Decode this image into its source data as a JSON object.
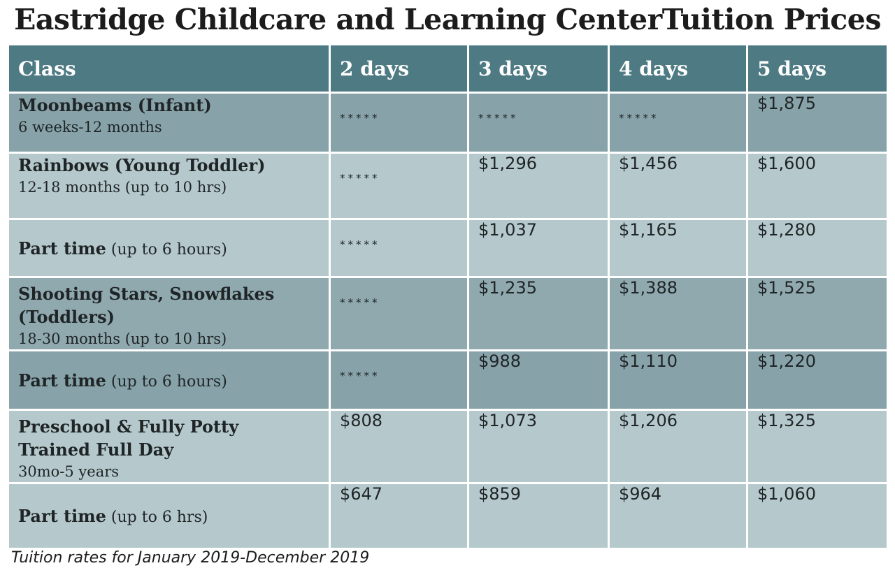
{
  "title": "Eastridge Childcare and Learning CenterTuition Prices",
  "columns": [
    "Class",
    "2 days",
    "3 days",
    "4 days",
    "5 days"
  ],
  "rows": [
    {
      "name": "Moonbeams (Infant)",
      "note": "",
      "sub": "6 weeks-12 months",
      "prices": [
        "*****",
        "*****",
        "*****",
        "$1,875"
      ]
    },
    {
      "name": "Rainbows (Young Toddler)",
      "note": "",
      "sub": "12-18 months (up to 10 hrs)",
      "prices": [
        "*****",
        "$1,296",
        "$1,456",
        "$1,600"
      ]
    },
    {
      "name": "Part time",
      "note": "(up to 6 hours)",
      "sub": "",
      "prices": [
        "*****",
        "$1,037",
        "$1,165",
        "$1,280"
      ]
    },
    {
      "name": "Shooting Stars, Snowflakes (Toddlers)",
      "note": "",
      "sub": "18-30 months (up to 10 hrs)",
      "prices": [
        "*****",
        "$1,235",
        "$1,388",
        "$1,525"
      ]
    },
    {
      "name": "Part time",
      "note": "(up to 6 hours)",
      "sub": "",
      "prices": [
        "*****",
        "$988",
        "$1,110",
        "$1,220"
      ]
    },
    {
      "name": "Preschool & Fully Potty Trained Full Day",
      "note": "",
      "sub": "30mo-5 years",
      "prices": [
        "$808",
        "$1,073",
        "$1,206",
        "$1,325"
      ]
    },
    {
      "name": "Part time",
      "note": "(up to 6 hrs)",
      "sub": "",
      "prices": [
        "$647",
        "$859",
        "$964",
        "$1,060"
      ]
    }
  ],
  "footnote": "Tuition rates for January 2019-December 2019"
}
